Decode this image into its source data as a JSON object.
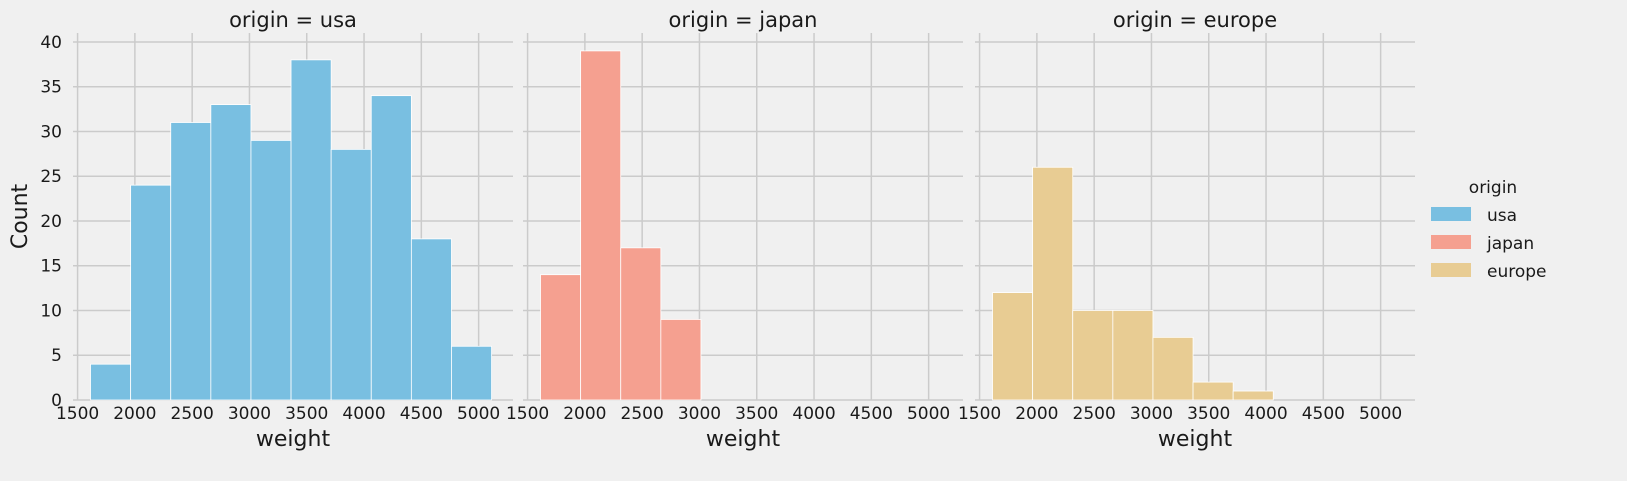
{
  "chart_data": {
    "type": "bar",
    "ylabel": "Count",
    "ylim": [
      0,
      41
    ],
    "yticks": [
      0,
      5,
      10,
      15,
      20,
      25,
      30,
      35,
      40
    ],
    "xlim": [
      1460,
      5300
    ],
    "xticks": [
      1500,
      2000,
      2500,
      3000,
      3500,
      4000,
      4500,
      5000
    ],
    "grid": true,
    "legend": {
      "title": "origin",
      "placement": "right",
      "entries": [
        {
          "label": "usa",
          "color": "#79bfe1"
        },
        {
          "label": "japan",
          "color": "#f5a090"
        },
        {
          "label": "europe",
          "color": "#e8cc93"
        }
      ]
    },
    "panels": [
      {
        "title": "origin = usa",
        "xlabel": "weight",
        "color": "#79bfe1",
        "bins": [
          {
            "x0": 1613,
            "x1": 1963,
            "count": 4
          },
          {
            "x0": 1963,
            "x1": 2313,
            "count": 24
          },
          {
            "x0": 2313,
            "x1": 2663,
            "count": 31
          },
          {
            "x0": 2663,
            "x1": 3013,
            "count": 33
          },
          {
            "x0": 3013,
            "x1": 3363,
            "count": 29
          },
          {
            "x0": 3363,
            "x1": 3713,
            "count": 38
          },
          {
            "x0": 3713,
            "x1": 4063,
            "count": 28
          },
          {
            "x0": 4063,
            "x1": 4413,
            "count": 34
          },
          {
            "x0": 4413,
            "x1": 4763,
            "count": 18
          },
          {
            "x0": 4763,
            "x1": 5113,
            "count": 6
          }
        ]
      },
      {
        "title": "origin = japan",
        "xlabel": "weight",
        "color": "#f5a090",
        "bins": [
          {
            "x0": 1613,
            "x1": 1963,
            "count": 14
          },
          {
            "x0": 1963,
            "x1": 2313,
            "count": 39
          },
          {
            "x0": 2313,
            "x1": 2663,
            "count": 17
          },
          {
            "x0": 2663,
            "x1": 3013,
            "count": 9
          }
        ]
      },
      {
        "title": "origin = europe",
        "xlabel": "weight",
        "color": "#e8cc93",
        "bins": [
          {
            "x0": 1613,
            "x1": 1963,
            "count": 12
          },
          {
            "x0": 1963,
            "x1": 2313,
            "count": 26
          },
          {
            "x0": 2313,
            "x1": 2663,
            "count": 10
          },
          {
            "x0": 2663,
            "x1": 3013,
            "count": 10
          },
          {
            "x0": 3013,
            "x1": 3363,
            "count": 7
          },
          {
            "x0": 3363,
            "x1": 3713,
            "count": 2
          },
          {
            "x0": 3713,
            "x1": 4063,
            "count": 1
          }
        ]
      }
    ]
  }
}
